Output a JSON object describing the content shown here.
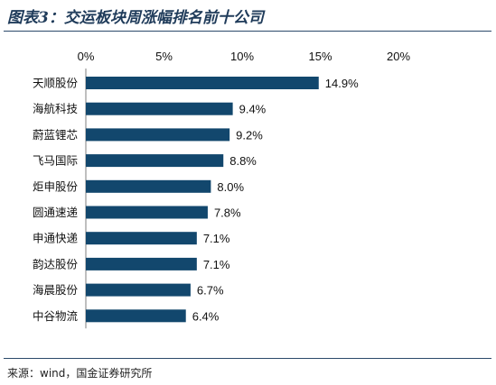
{
  "header": {
    "title": "图表3：交运板块周涨幅排名前十公司"
  },
  "footer": {
    "source": "来源：wind，国金证券研究所"
  },
  "chart_data": {
    "type": "bar",
    "orientation": "horizontal",
    "categories": [
      "天顺股份",
      "海航科技",
      "蔚蓝锂芯",
      "飞马国际",
      "炬申股份",
      "圆通速递",
      "申通快递",
      "韵达股份",
      "海晨股份",
      "中谷物流"
    ],
    "values": [
      14.9,
      9.4,
      9.2,
      8.8,
      8.0,
      7.8,
      7.1,
      7.1,
      6.7,
      6.4
    ],
    "value_labels": [
      "14.9%",
      "9.4%",
      "9.2%",
      "8.8%",
      "8.0%",
      "7.8%",
      "7.1%",
      "7.1%",
      "6.7%",
      "6.4%"
    ],
    "xlim": [
      0,
      20
    ],
    "x_ticks": [
      0,
      5,
      10,
      15,
      20
    ],
    "x_tick_labels": [
      "0%",
      "5%",
      "10%",
      "15%",
      "20%"
    ],
    "axis_position": "top",
    "grid": false,
    "bar_color": "#12476d"
  }
}
